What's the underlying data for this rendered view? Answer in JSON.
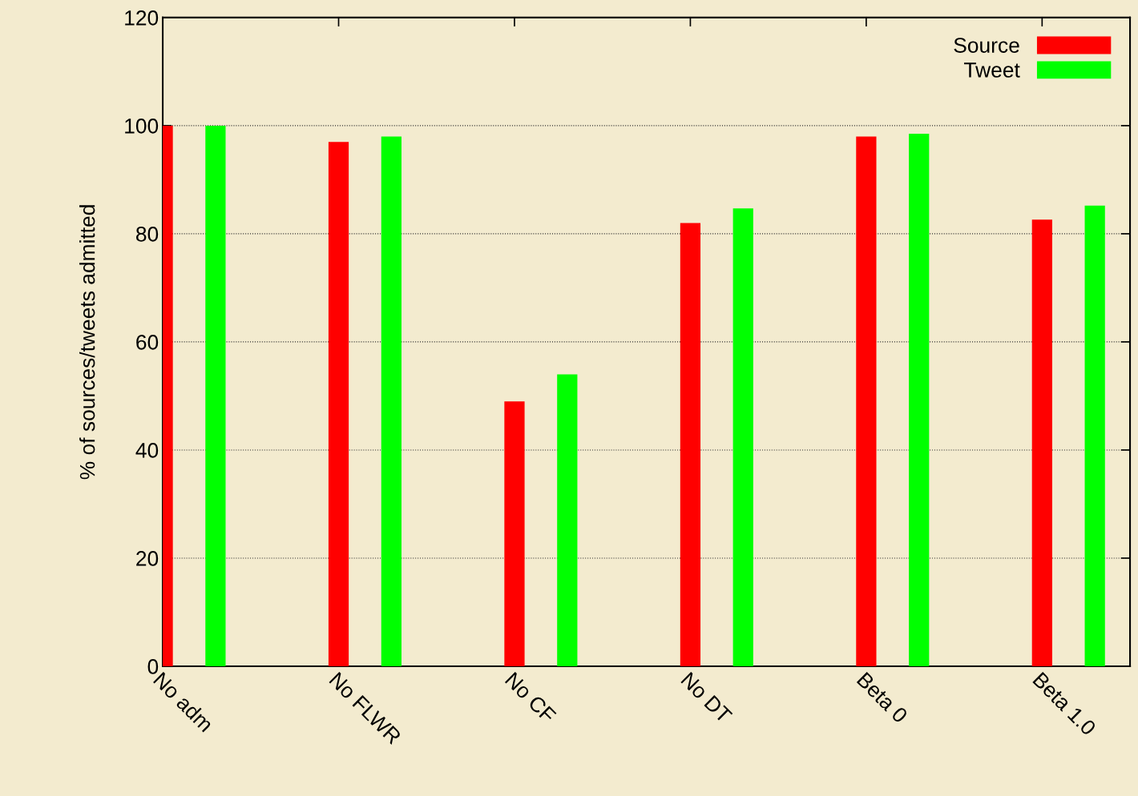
{
  "chart_data": {
    "type": "bar",
    "ylabel": "% of sources/tweets admitted",
    "categories": [
      "No adm",
      "No FLWR",
      "No CF",
      "No DT",
      "Beta 0",
      "Beta 1.0"
    ],
    "series": [
      {
        "name": "Source",
        "color": "#ff0000",
        "values": [
          100,
          97,
          49,
          82,
          98,
          82.6
        ]
      },
      {
        "name": "Tweet",
        "color": "#00ff00",
        "values": [
          100,
          98,
          54,
          84.7,
          98.5,
          85.2
        ]
      }
    ],
    "ylim": [
      0,
      120
    ],
    "yticks": [
      0,
      20,
      40,
      60,
      80,
      100,
      120
    ],
    "grid": "y",
    "legend": "top right"
  }
}
